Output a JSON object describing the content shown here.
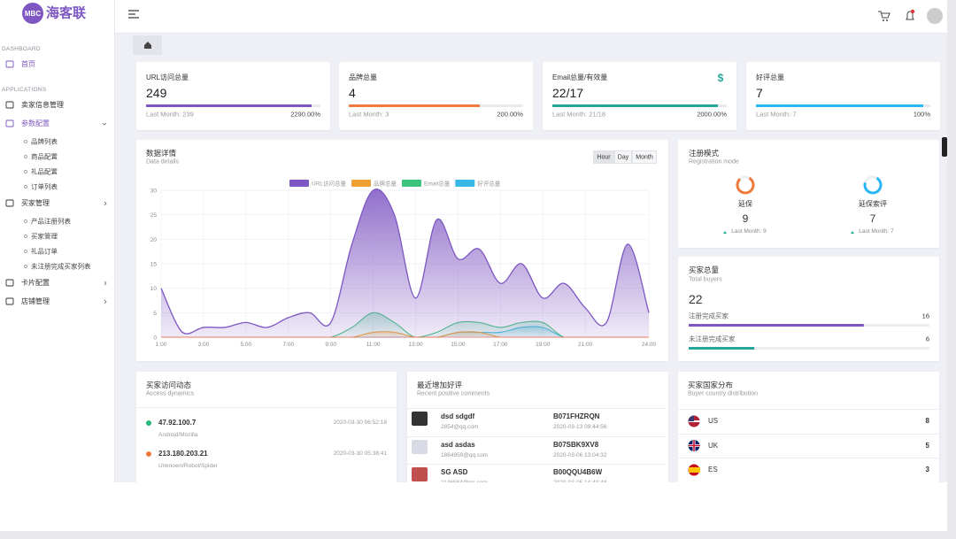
{
  "sidebar": {
    "logo_badge": "MBC",
    "logo_text": "海客联",
    "sections": [
      {
        "label": "DASHBOARD",
        "items": [
          {
            "label": "首页"
          }
        ]
      },
      {
        "label": "APPLICATIONS",
        "items": [
          {
            "label": "卖家信息管理"
          },
          {
            "label": "参数配置",
            "children": [
              "品牌列表",
              "商品配置",
              "礼品配置",
              "订单列表"
            ]
          },
          {
            "label": "买家管理",
            "children": [
              "产品注册列表",
              "买家管理",
              "礼品订单",
              "未注册完成买家列表"
            ]
          },
          {
            "label": "卡片配置"
          },
          {
            "label": "店铺管理"
          }
        ]
      }
    ]
  },
  "stats": [
    {
      "title": "URL访问总量",
      "value": 249,
      "last_month": "Last Month: 239",
      "change": "2290.00%",
      "color": "#7e57c2"
    },
    {
      "title": "品牌总量",
      "value": 4,
      "last_month": "Last Month: 3",
      "change": "200.00%",
      "color": "#f07a3a"
    },
    {
      "title": "Email总量/有效量",
      "value": "22/17",
      "last_month": "Last Month: 21/18",
      "change": "2000.00%",
      "color": "#26a69a",
      "icon": "$"
    },
    {
      "title": "好评总量",
      "value": 7,
      "last_month": "Last Month: 7",
      "change": "100%",
      "color": "#29b6f6"
    }
  ],
  "chart_data": {
    "type": "area",
    "title": "数据详情",
    "subtitle": "Data details",
    "buttons": [
      "Hour",
      "Day",
      "Month"
    ],
    "x": [
      1,
      2,
      3,
      4,
      5,
      6,
      7,
      8,
      9,
      10,
      11,
      12,
      13,
      14,
      15,
      16,
      17,
      18,
      19,
      20,
      21,
      22,
      23,
      24
    ],
    "xlim": [
      1,
      24
    ],
    "xticks": [
      {
        "value": 1,
        "label": "1:00"
      },
      {
        "value": 3,
        "label": "3:00"
      },
      {
        "value": 5,
        "label": "5:00"
      },
      {
        "value": 7,
        "label": "7:00"
      },
      {
        "value": 9,
        "label": "9:00"
      },
      {
        "value": 11,
        "label": "11:00"
      },
      {
        "value": 13,
        "label": "13:00"
      },
      {
        "value": 15,
        "label": "15:00"
      },
      {
        "value": 17,
        "label": "17:00"
      },
      {
        "value": 19,
        "label": "19:00"
      },
      {
        "value": 21,
        "label": "21:00"
      },
      {
        "value": 24,
        "label": "24:00"
      }
    ],
    "ylim": [
      0,
      30
    ],
    "yticks": [
      0,
      5,
      10,
      15,
      20,
      25,
      30
    ],
    "grid": true,
    "series": [
      {
        "name": "URL访问总量",
        "color": "#7e57c2",
        "values": [
          10,
          1,
          2,
          2,
          3,
          2,
          4,
          5,
          3,
          19,
          30,
          25,
          8,
          24,
          16,
          18,
          11,
          15,
          8,
          11,
          6,
          3,
          19,
          5
        ]
      },
      {
        "name": "品牌总量",
        "color": "#f0a030",
        "values": [
          0,
          0,
          0,
          0,
          0,
          0,
          0,
          0,
          0,
          0,
          1,
          1,
          0,
          0,
          1,
          1,
          0,
          0,
          0,
          0,
          0,
          0,
          0,
          0
        ]
      },
      {
        "name": "Email总量",
        "color": "#3cc47c",
        "values": [
          0,
          0,
          0,
          0,
          0,
          0,
          0,
          0,
          0,
          2,
          5,
          3,
          0,
          1,
          3,
          3,
          2,
          3,
          3,
          0,
          0,
          0,
          0,
          0
        ]
      },
      {
        "name": "好评总量",
        "color": "#36b9e6",
        "values": [
          0,
          0,
          0,
          0,
          0,
          0,
          0,
          0,
          0,
          0,
          0,
          0,
          0,
          0,
          1,
          1,
          1,
          2,
          2,
          0,
          0,
          0,
          0,
          0
        ]
      }
    ]
  },
  "registration": {
    "title": "注册模式",
    "subtitle": "Registration mode",
    "items": [
      {
        "label": "延保",
        "value": 9,
        "last_month": "Last Month: 9",
        "color": "#f07a3a"
      },
      {
        "label": "延保索评",
        "value": 7,
        "last_month": "Last Month: 7",
        "color": "#29b6f6"
      }
    ]
  },
  "buyers": {
    "title": "买家总量",
    "subtitle": "Total buyers",
    "total": 22,
    "rows": [
      {
        "label": "注册完成买家",
        "value": 16,
        "color": "#7e57c2"
      },
      {
        "label": "未注册完成买家",
        "value": 6,
        "color": "#26a69a"
      }
    ]
  },
  "access": {
    "title": "买家访问动态",
    "subtitle": "Access dynamics",
    "entries": [
      {
        "ip": "47.92.100.7",
        "agent": "Android/Mozilla",
        "time": "2020-03-30 06:52:18",
        "color": "#26b67a"
      },
      {
        "ip": "213.180.203.21",
        "agent": "Unknown/Robot/Spider",
        "time": "2020-03-30 05:38:41",
        "color": "#f07a3a"
      }
    ]
  },
  "comments": {
    "title": "最近增加好评",
    "subtitle": "Recent positive comments",
    "rows": [
      {
        "name": "dsd sdgdf",
        "email": "2854@qq.com",
        "asin": "B071FHZRQN",
        "time": "2020-03-13 09:44:56"
      },
      {
        "name": "asd asdas",
        "email": "1864959@qq.com",
        "asin": "B07SBK9XV8",
        "time": "2020-03-06 13:04:32"
      },
      {
        "name": "SG ASD",
        "email": "1146564@qq.com",
        "asin": "B00QQU4B6W",
        "time": "2020-03-05 14:40:48"
      }
    ]
  },
  "countries": {
    "title": "买家国家分布",
    "subtitle": "Buyer country distribution",
    "rows": [
      {
        "name": "US",
        "value": 8
      },
      {
        "name": "UK",
        "value": 5
      },
      {
        "name": "ES",
        "value": 3
      }
    ]
  }
}
